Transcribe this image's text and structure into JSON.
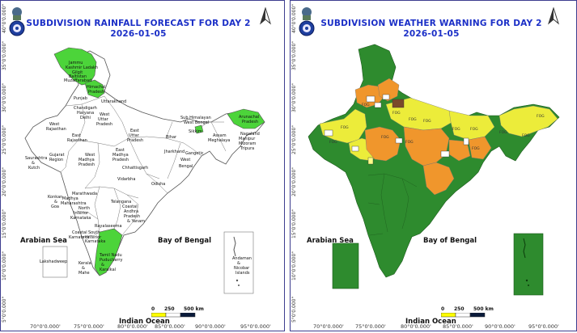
{
  "left_panel": {
    "title": "SUBDIVISION RAINFALL FORECAST FOR DAY 2",
    "date": "2026-01-05",
    "sea_left": "Arabian Sea",
    "sea_right": "Bay of Bengal",
    "ocean": "Indian Ocean",
    "scale_labels": [
      "0",
      "250",
      "500 km"
    ],
    "lat_labels": [
      "5°0'0.000\"",
      "10°0'0.000\"",
      "15°0'0.000\"",
      "20°0'0.000\"",
      "25°0'0.000\"",
      "30°0'0.000\"",
      "35°0'0.000\"",
      "40°0'0.000\""
    ],
    "lon_labels": [
      "70°0'0.000'",
      "75°0'0.000'",
      "80°0'0.000'",
      "85°0'0.000'",
      "90°0'0.000'",
      "95°0'0.000'"
    ],
    "highlight_color": "#4cd43a",
    "regions": [
      "Jammu Kashmir Ladakh Gilgit Baltistan Muzaffarabad",
      "Himachal Pradesh",
      "Punjab",
      "Uttarakhand",
      "Chandigarh Haryana Delhi",
      "West Uttar Pradesh",
      "East Uttar Pradesh",
      "West Rajasthan",
      "East Rajasthan",
      "Saurashtra & Kutch",
      "Gujarat Region",
      "West Madhya Pradesh",
      "East Madhya Pradesh",
      "Bihar",
      "Jharkhand",
      "Gangetic West Bengal",
      "Sub Himalayan West Bengal",
      "Sikkim",
      "Arunachal Pradesh",
      "Assam Meghalaya",
      "Nagaland Manipur Mizoram Tripura",
      "Chhattisgarh",
      "Odisha",
      "Vidarbha",
      "Marathwada",
      "Madhya Maharashtra",
      "Konkan & Goa",
      "North Interior Karnataka",
      "Telangana",
      "Coastal Andhra Pradesh & Yanam",
      "Rayalaseema",
      "Coastal Karnataka",
      "South Interior Karnataka",
      "Kerala & Mahe",
      "Tamil Nadu Puducherry & Karaikal",
      "Lakshadweep",
      "Andaman & Nicobar Islands"
    ]
  },
  "right_panel": {
    "title": "SUBDIVISION WEATHER WARNING FOR DAY 2",
    "date": "2026-01-05",
    "sea_left": "Arabian Sea",
    "sea_right": "Bay of Bengal",
    "ocean": "Indian Ocean",
    "scale_labels": [
      "0",
      "250",
      "500 km"
    ],
    "lat_labels": [
      "5°0'0.000\"",
      "10°0'0.000\"",
      "15°0'0.000\"",
      "20°0'0.000\"",
      "25°0'0.000\"",
      "30°0'0.000\"",
      "35°0'0.000\"",
      "40°0'0.000\""
    ],
    "lon_labels": [
      "70°0'0.000'",
      "75°0'0.000'",
      "80°0'0.000'",
      "85°0'0.000'",
      "90°0'0.000'",
      "95°0'0.000'"
    ],
    "fog_label": "FOG",
    "colors": {
      "no_warning": "#2e8b2e",
      "watch": "#ecec3a",
      "alert": "#f0962c",
      "warning_red": "#e02020"
    }
  }
}
